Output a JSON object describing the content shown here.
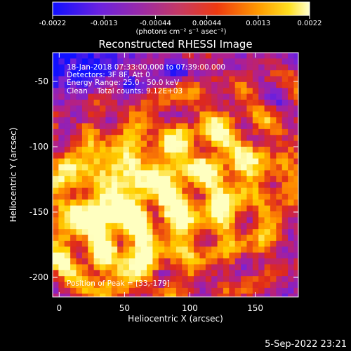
{
  "chart_data": {
    "type": "heatmap",
    "title": "Reconstructed RHESSI Image",
    "xlabel": "Heliocentric X (arcsec)",
    "ylabel": "Heliocentric Y (arcsec)",
    "xlim": [
      -5,
      183
    ],
    "ylim": [
      -215,
      -28
    ],
    "xticks": [
      0,
      50,
      100,
      150
    ],
    "yticks": [
      -50,
      -100,
      -150,
      -200
    ],
    "colorbar": {
      "range": [
        -0.0022,
        0.0022
      ],
      "ticks": [
        "-0.0022",
        "-0.0013",
        "-0.00044",
        "0.00044",
        "0.0013",
        "0.0022"
      ],
      "unit_label": "(photons cm⁻² s⁻¹ asec⁻²)",
      "colors": [
        "#1010ff",
        "#7a22d6",
        "#b0208e",
        "#e02a18",
        "#ff8a00",
        "#ffd200",
        "#ffffc0"
      ]
    },
    "annotations": [
      "18-Jan-2018 07:33:00.000 to 07:39:00.000",
      "Detectors: 3F 8F, Att 0",
      "Energy Range: 25.0 - 50.0 keV",
      "Clean    Total counts: 9.12E+03"
    ],
    "peak_label": "Position of Peak = [33,-179]",
    "peak": [
      33,
      -179
    ]
  },
  "footer_date": "5-Sep-2022 23:21"
}
